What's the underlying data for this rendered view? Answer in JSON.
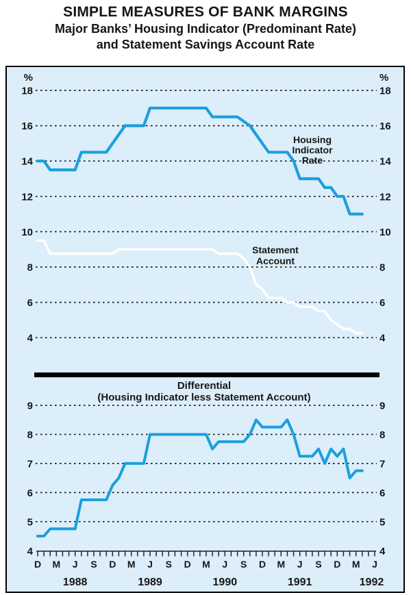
{
  "title": {
    "line1": "SIMPLE MEASURES OF BANK MARGINS",
    "line2": "Major Banks’ Housing Indicator (Predominant Rate)",
    "line3": "and Statement Savings Account Rate"
  },
  "annotations": {
    "housing": [
      "Housing",
      "Indicator",
      "Rate"
    ],
    "statement": [
      "Statement",
      "Account"
    ]
  },
  "colors": {
    "panel_background": "#dceef9",
    "line_blue": "#1b9fdf",
    "line_white": "#ffffff",
    "grid": "#1a1a1a",
    "separator_bar": "#000000",
    "text": "#161616"
  },
  "x_axis": {
    "tick_letters": [
      "D",
      "M",
      "J",
      "S",
      "D",
      "M",
      "J",
      "S",
      "D",
      "M",
      "J",
      "S",
      "D",
      "M",
      "J",
      "S",
      "D",
      "M",
      "J"
    ],
    "years": [
      "1988",
      "1989",
      "1990",
      "1991",
      "1992"
    ],
    "first_tick_month": "Dec 1987",
    "last_tick_month": "Jun 1992",
    "total_month_ticks": 55
  },
  "chart_data": [
    {
      "type": "line",
      "panel": "top",
      "ylabel": "%",
      "ylabel_right": "%",
      "yticks": [
        18,
        16,
        14,
        12,
        10,
        8,
        6,
        4
      ],
      "ylim": [
        3.6,
        18.8
      ],
      "grid": "dotted",
      "x": [
        "Dec 1987",
        "Jan 1988",
        "Feb 1988",
        "Mar 1988",
        "Apr 1988",
        "May 1988",
        "Jun 1988",
        "Jul 1988",
        "Aug 1988",
        "Sep 1988",
        "Oct 1988",
        "Nov 1988",
        "Dec 1988",
        "Jan 1989",
        "Feb 1989",
        "Mar 1989",
        "Apr 1989",
        "May 1989",
        "Jun 1989",
        "Jul 1989",
        "Aug 1989",
        "Sep 1989",
        "Oct 1989",
        "Nov 1989",
        "Dec 1989",
        "Jan 1990",
        "Feb 1990",
        "Mar 1990",
        "Apr 1990",
        "May 1990",
        "Jun 1990",
        "Jul 1990",
        "Aug 1990",
        "Sep 1990",
        "Oct 1990",
        "Nov 1990",
        "Dec 1990",
        "Jan 1991",
        "Feb 1991",
        "Mar 1991",
        "Apr 1991",
        "May 1991",
        "Jun 1991",
        "Jul 1991",
        "Aug 1991",
        "Sep 1991",
        "Oct 1991",
        "Nov 1991",
        "Dec 1991",
        "Jan 1992",
        "Feb 1992",
        "Mar 1992",
        "Apr 1992"
      ],
      "series": [
        {
          "name": "Housing Indicator Rate",
          "color": "#1b9fdf",
          "width": 4.2,
          "values": [
            14,
            14,
            13.5,
            13.5,
            13.5,
            13.5,
            13.5,
            14.5,
            14.5,
            14.5,
            14.5,
            14.5,
            15,
            15.5,
            16,
            16,
            16,
            16,
            17,
            17,
            17,
            17,
            17,
            17,
            17,
            17,
            17,
            17,
            16.5,
            16.5,
            16.5,
            16.5,
            16.5,
            16.25,
            16,
            15.5,
            15,
            14.5,
            14.5,
            14.5,
            14.5,
            14,
            13,
            13,
            13,
            13,
            12.5,
            12.5,
            12,
            12,
            11,
            11,
            11
          ]
        },
        {
          "name": "Statement Account",
          "color": "#ffffff",
          "width": 3.6,
          "values": [
            9.5,
            9.5,
            8.75,
            8.75,
            8.75,
            8.75,
            8.75,
            8.75,
            8.75,
            8.75,
            8.75,
            8.75,
            8.75,
            9,
            9,
            9,
            9,
            9,
            9,
            9,
            9,
            9,
            9,
            9,
            9,
            9,
            9,
            9,
            9,
            8.75,
            8.75,
            8.75,
            8.75,
            8.5,
            8,
            7,
            6.75,
            6.25,
            6.25,
            6.25,
            6,
            6,
            5.75,
            5.75,
            5.75,
            5.5,
            5.5,
            5,
            4.75,
            4.5,
            4.5,
            4.25,
            4.25
          ]
        }
      ]
    },
    {
      "type": "line",
      "panel": "bottom",
      "title": "Differential",
      "subtitle": "(Housing Indicator less Statement Account)",
      "yticks": [
        9,
        8,
        7,
        6,
        5,
        4
      ],
      "ylim": [
        4,
        9.5
      ],
      "grid": "dotted",
      "x_same_as_panel_1": true,
      "series": [
        {
          "name": "Differential (Housing Indicator less Statement Account)",
          "color": "#1b9fdf",
          "width": 4,
          "values": [
            4.5,
            4.5,
            4.75,
            4.75,
            4.75,
            4.75,
            4.75,
            5.75,
            5.75,
            5.75,
            5.75,
            5.75,
            6.25,
            6.5,
            7,
            7,
            7,
            7,
            8,
            8,
            8,
            8,
            8,
            8,
            8,
            8,
            8,
            8,
            7.5,
            7.75,
            7.75,
            7.75,
            7.75,
            7.75,
            8,
            8.5,
            8.25,
            8.25,
            8.25,
            8.25,
            8.5,
            8,
            7.25,
            7.25,
            7.25,
            7.5,
            7,
            7.5,
            7.25,
            7.5,
            6.5,
            6.75,
            6.75
          ]
        }
      ]
    }
  ]
}
